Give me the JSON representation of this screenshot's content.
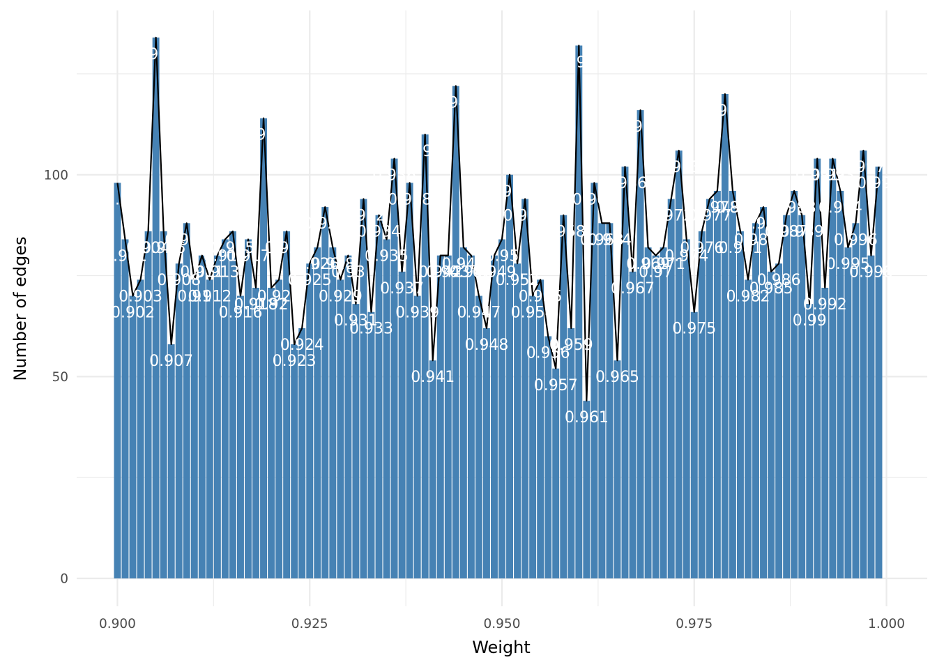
{
  "chart_data": {
    "type": "bar",
    "title": "",
    "xlabel": "Weight",
    "ylabel": "Number of edges",
    "xlim": [
      0.8947,
      1.0053
    ],
    "ylim": [
      -6.9,
      140.7
    ],
    "x_ticks": [
      0.9,
      0.925,
      0.95,
      0.975,
      1.0
    ],
    "x_tick_labels": [
      "0.900",
      "0.925",
      "0.950",
      "0.975",
      "1.000"
    ],
    "y_ticks": [
      0,
      50,
      100
    ],
    "y_tick_labels": [
      "0",
      "50",
      "100"
    ],
    "grid": true,
    "legend": "none",
    "bar_color": "#4682B4",
    "line_color": "#000000",
    "label_color": "#ffffff",
    "grid_color": "#ebebeb",
    "overlay": "line through bar tops",
    "x": [
      0.9,
      0.901,
      0.902,
      0.903,
      0.904,
      0.905,
      0.906,
      0.907,
      0.908,
      0.909,
      0.91,
      0.911,
      0.912,
      0.913,
      0.914,
      0.915,
      0.916,
      0.917,
      0.918,
      0.919,
      0.92,
      0.921,
      0.922,
      0.923,
      0.924,
      0.925,
      0.926,
      0.927,
      0.928,
      0.929,
      0.93,
      0.931,
      0.932,
      0.933,
      0.934,
      0.935,
      0.936,
      0.937,
      0.938,
      0.939,
      0.94,
      0.941,
      0.942,
      0.943,
      0.944,
      0.945,
      0.946,
      0.947,
      0.948,
      0.949,
      0.95,
      0.951,
      0.952,
      0.953,
      0.954,
      0.955,
      0.956,
      0.957,
      0.958,
      0.959,
      0.96,
      0.961,
      0.962,
      0.963,
      0.964,
      0.965,
      0.966,
      0.967,
      0.968,
      0.969,
      0.97,
      0.971,
      0.972,
      0.973,
      0.974,
      0.975,
      0.976,
      0.977,
      0.978,
      0.979,
      0.98,
      0.981,
      0.982,
      0.983,
      0.984,
      0.985,
      0.986,
      0.987,
      0.988,
      0.989,
      0.99,
      0.991,
      0.992,
      0.993,
      0.994,
      0.995,
      0.996,
      0.997,
      0.998,
      0.999
    ],
    "values": [
      98,
      84,
      70,
      74,
      86,
      134,
      86,
      58,
      78,
      88,
      74,
      80,
      74,
      80,
      84,
      86,
      70,
      84,
      72,
      114,
      72,
      74,
      86,
      58,
      62,
      78,
      82,
      92,
      82,
      74,
      80,
      68,
      94,
      66,
      90,
      84,
      104,
      76,
      98,
      70,
      110,
      54,
      80,
      80,
      122,
      82,
      80,
      70,
      62,
      80,
      84,
      100,
      78,
      94,
      70,
      74,
      60,
      52,
      90,
      62,
      132,
      44,
      98,
      88,
      88,
      54,
      102,
      76,
      116,
      82,
      80,
      82,
      94,
      106,
      84,
      66,
      86,
      94,
      96,
      120,
      96,
      86,
      74,
      88,
      92,
      76,
      78,
      90,
      96,
      90,
      68,
      104,
      72,
      104,
      96,
      82,
      88,
      106,
      80,
      102
    ],
    "labels": [
      "0.9",
      "0.901",
      "0.902",
      "0.903",
      "0.904",
      "0.905",
      "0.906",
      "0.907",
      "0.908",
      "0.909",
      "0.91",
      "0.911",
      "0.912",
      "0.913",
      "0.914",
      "0.915",
      "0.916",
      "0.917",
      "0.918",
      "0.919",
      "0.92",
      "0.921",
      "0.922",
      "0.923",
      "0.924",
      "0.925",
      "0.926",
      "0.927",
      "0.928",
      "0.929",
      "0.93",
      "0.931",
      "0.932",
      "0.933",
      "0.934",
      "0.935",
      "0.936",
      "0.937",
      "0.938",
      "0.939",
      "0.94",
      "0.941",
      "0.942",
      "0.943",
      "0.944",
      "0.945",
      "0.946",
      "0.947",
      "0.948",
      "0.949",
      "0.95",
      "0.951",
      "0.952",
      "0.953",
      "0.954",
      "0.955",
      "0.956",
      "0.957",
      "0.958",
      "0.959",
      "0.96",
      "0.961",
      "0.962",
      "0.963",
      "0.964",
      "0.965",
      "0.966",
      "0.967",
      "0.968",
      "0.969",
      "0.97",
      "0.971",
      "0.972",
      "0.973",
      "0.974",
      "0.975",
      "0.976",
      "0.977",
      "0.978",
      "0.979",
      "0.98",
      "0.981",
      "0.982",
      "0.983",
      "0.984",
      "0.985",
      "0.986",
      "0.987",
      "0.988",
      "0.989",
      "0.99",
      "0.991",
      "0.992",
      "0.993",
      "0.994",
      "0.995",
      "0.996",
      "0.997",
      "0.998",
      "0.999"
    ]
  }
}
